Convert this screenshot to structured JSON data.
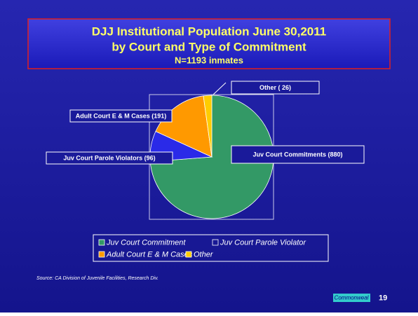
{
  "chart_data": {
    "type": "pie",
    "title": "DJJ Institutional Population June 30,2011",
    "subtitle": "by Court and Type of Commitment",
    "note": "N=1193 inmates",
    "categories": [
      "Juv Court Commitment",
      "Juv Court Parole Violator",
      "Adult Court E & M Cases",
      "Other"
    ],
    "values": [
      880,
      96,
      191,
      26
    ],
    "value_labels": [
      "Juv Court Commitments (880)",
      "Juv Court Parole Violators (96)",
      "Adult Court E & M Cases (191)",
      "Other ( 26)"
    ],
    "colors": [
      "#339966",
      "#2a2ae8",
      "#ff9900",
      "#ffcc00"
    ],
    "source": "Source: CA Division of Juvenile Facilities, Research Div.",
    "footer": "Commonweal",
    "page": "19"
  }
}
